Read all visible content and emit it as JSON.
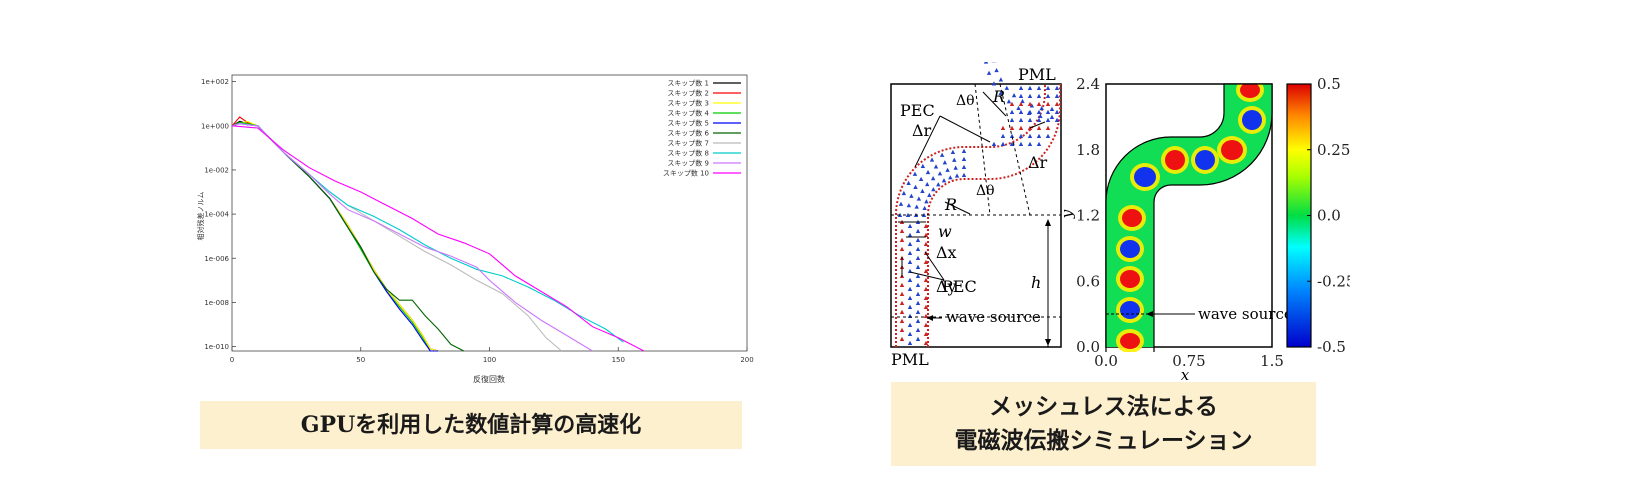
{
  "captions": {
    "left": "GPUを利用した数値計算の高速化",
    "right_line1": "メッシュレス法による",
    "right_line2": "電磁波伝搬シミュレーション"
  },
  "chart_data": [
    {
      "type": "line",
      "xlabel": "反復回数",
      "ylabel": "相対残差ノルム",
      "yscale": "log",
      "xlim": [
        0,
        200
      ],
      "ylim": [
        -10.2,
        2.3
      ],
      "x_ticks": [
        "0",
        "50",
        "100",
        "150",
        "200"
      ],
      "y_ticks": [
        "1e+002",
        "1e+000",
        "1e-002",
        "1e-004",
        "1e-006",
        "1e-008",
        "1e-010"
      ],
      "legend": "top-right",
      "series": [
        {
          "name": "スキップ数 1",
          "color": "#000000",
          "x": [
            0,
            3,
            6,
            10,
            20,
            30,
            38,
            45,
            50,
            55,
            60,
            65,
            70,
            74,
            77,
            80
          ],
          "y": [
            0,
            0.2,
            0.1,
            0,
            -1.2,
            -2.3,
            -3.3,
            -4.5,
            -5.5,
            -6.5,
            -7.4,
            -8.1,
            -8.8,
            -9.5,
            -10.1,
            -10.6
          ]
        },
        {
          "name": "スキップ数 2",
          "color": "#ff0000",
          "x": [
            0,
            3,
            6,
            10,
            20,
            30,
            38,
            45,
            50,
            55,
            60,
            65,
            70,
            74,
            77,
            80
          ],
          "y": [
            0,
            0.4,
            0.15,
            0,
            -1.2,
            -2.3,
            -3.3,
            -4.5,
            -5.5,
            -6.5,
            -7.4,
            -8.1,
            -8.8,
            -9.5,
            -10.1,
            -10.6
          ]
        },
        {
          "name": "スキップ数 3",
          "color": "#ffff00",
          "x": [
            0,
            3,
            6,
            10,
            20,
            30,
            38,
            45,
            50,
            55,
            60,
            65,
            70,
            74,
            77,
            80
          ],
          "y": [
            0,
            0.1,
            0.2,
            0,
            -1.2,
            -2.3,
            -3.3,
            -4.5,
            -5.5,
            -6.5,
            -7.4,
            -8.1,
            -8.8,
            -9.5,
            -10.1,
            -10.6
          ]
        },
        {
          "name": "スキップ数 4",
          "color": "#00cc00",
          "x": [
            0,
            3,
            6,
            10,
            20,
            30,
            38,
            45,
            50,
            55,
            60,
            65,
            70,
            74,
            77,
            80
          ],
          "y": [
            0,
            0.15,
            0.1,
            0,
            -1.2,
            -2.3,
            -3.3,
            -4.6,
            -5.6,
            -6.6,
            -7.5,
            -8.2,
            -8.9,
            -9.6,
            -10.2,
            -10.6
          ]
        },
        {
          "name": "スキップ数 5",
          "color": "#0000ff",
          "x": [
            0,
            3,
            6,
            10,
            20,
            30,
            38,
            45,
            50,
            55,
            60,
            65,
            70,
            74,
            77,
            80
          ],
          "y": [
            0,
            0.1,
            0.05,
            0,
            -1.2,
            -2.3,
            -3.3,
            -4.6,
            -5.5,
            -6.6,
            -7.5,
            -8.3,
            -9.0,
            -9.7,
            -10.3,
            -10.6
          ]
        },
        {
          "name": "スキップ数 6",
          "color": "#006600",
          "x": [
            0,
            3,
            6,
            10,
            20,
            30,
            38,
            45,
            50,
            55,
            60,
            65,
            70,
            75,
            80,
            85,
            90
          ],
          "y": [
            0,
            0.1,
            0.05,
            0,
            -1.2,
            -2.3,
            -3.3,
            -4.6,
            -5.5,
            -6.6,
            -7.4,
            -7.9,
            -7.9,
            -8.6,
            -9.2,
            -9.9,
            -10.4
          ]
        },
        {
          "name": "スキップ数 7",
          "color": "#bbbbbb",
          "x": [
            0,
            3,
            6,
            10,
            20,
            30,
            38,
            45,
            55,
            65,
            75,
            85,
            95,
            105,
            115,
            122,
            128
          ],
          "y": [
            0,
            0.1,
            0.05,
            0,
            -1.2,
            -2.2,
            -3.0,
            -3.6,
            -4.3,
            -5.0,
            -5.7,
            -6.3,
            -7.0,
            -7.6,
            -8.6,
            -9.6,
            -10.4
          ]
        },
        {
          "name": "スキップ数 8",
          "color": "#00cccc",
          "x": [
            0,
            3,
            6,
            10,
            20,
            30,
            38,
            45,
            55,
            65,
            75,
            85,
            95,
            105,
            115,
            125,
            135,
            145,
            152
          ],
          "y": [
            0,
            0.1,
            0.05,
            0,
            -1.2,
            -2.2,
            -3.0,
            -3.6,
            -4.1,
            -4.7,
            -5.4,
            -6.0,
            -6.5,
            -6.8,
            -7.3,
            -7.9,
            -8.6,
            -9.2,
            -9.8
          ]
        },
        {
          "name": "スキップ数 9",
          "color": "#cc77ff",
          "x": [
            0,
            3,
            6,
            10,
            20,
            30,
            38,
            45,
            55,
            65,
            75,
            85,
            95,
            100,
            110,
            120,
            130,
            140
          ],
          "y": [
            0,
            0.1,
            0.05,
            0,
            -1.2,
            -2.2,
            -3.1,
            -3.8,
            -4.3,
            -4.9,
            -5.5,
            -5.9,
            -6.4,
            -7.0,
            -8.0,
            -8.8,
            -9.5,
            -10.2
          ]
        },
        {
          "name": "スキップ数 10",
          "color": "#ff00ff",
          "x": [
            0,
            5,
            10,
            20,
            30,
            40,
            50,
            60,
            70,
            80,
            90,
            100,
            110,
            120,
            130,
            140,
            150,
            160
          ],
          "y": [
            0,
            -0.05,
            -0.1,
            -1.1,
            -1.9,
            -2.5,
            -3.0,
            -3.6,
            -4.2,
            -4.9,
            -5.3,
            -5.8,
            -6.8,
            -7.5,
            -8.2,
            -9.1,
            -9.6,
            -10.3
          ]
        }
      ]
    },
    {
      "type": "heatmap",
      "xlabel": "x",
      "ylabel": "y",
      "xlim": [
        0.0,
        1.5
      ],
      "ylim": [
        0.0,
        2.4
      ],
      "x_ticks": [
        "0.0",
        "0.75",
        "1.5"
      ],
      "y_ticks": [
        "0.0",
        "0.6",
        "1.2",
        "1.8",
        "2.4"
      ],
      "colorbar_ticks": [
        "0.5",
        "0.25",
        "0.0",
        "-0.25",
        "-0.5"
      ],
      "colorbar_range": [
        -0.5,
        0.5
      ],
      "annotation": "wave source"
    }
  ],
  "diagram": {
    "labels": {
      "pml_top": "PML",
      "pml_bottom": "PML",
      "pec_upper": "PEC",
      "pec_lower": "PEC",
      "delta_r_1": "Δr",
      "delta_r_2": "Δr",
      "delta_theta_1": "Δθ",
      "delta_theta_2": "Δθ",
      "radius_1": "R",
      "radius_2": "R",
      "width": "w",
      "delta_x": "Δx",
      "delta_y": "Δy",
      "height": "h",
      "source": "wave source"
    }
  }
}
